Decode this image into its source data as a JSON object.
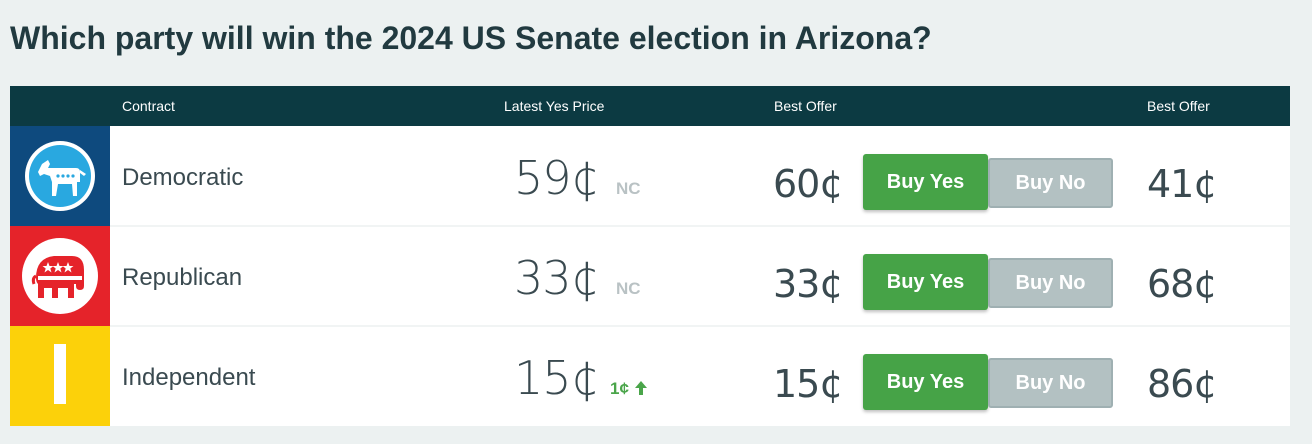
{
  "page": {
    "title": "Which party will win the 2024 US Senate election in Arizona?"
  },
  "table": {
    "headers": {
      "contract": "Contract",
      "latest_yes_price": "Latest Yes Price",
      "best_offer_yes": "Best Offer",
      "best_offer_no": "Best Offer"
    },
    "rows": [
      {
        "logo_icon": "donkey-icon",
        "logo_color": "#0e4a7e",
        "name": "Democratic",
        "price": "59¢",
        "change": "NC",
        "yes_offer": "60¢",
        "buy_yes": "Buy Yes",
        "buy_no": "Buy No",
        "no_offer": "41¢"
      },
      {
        "logo_icon": "elephant-icon",
        "logo_color": "#e5232a",
        "name": "Republican",
        "price": "33¢",
        "change": "NC",
        "yes_offer": "33¢",
        "buy_yes": "Buy Yes",
        "buy_no": "Buy No",
        "no_offer": "68¢"
      },
      {
        "logo_icon": "independent-bar-icon",
        "logo_color": "#fcd10a",
        "name": "Independent",
        "price": "15¢",
        "change": "1¢",
        "change_icon": "arrow-up-icon",
        "yes_offer": "15¢",
        "buy_yes": "Buy Yes",
        "buy_no": "Buy No",
        "no_offer": "86¢"
      }
    ]
  },
  "colors": {
    "header_bg": "#0c3a42",
    "buy_yes": "#46a347",
    "buy_no": "#b3c1c2",
    "up_change": "#4aa54a"
  }
}
